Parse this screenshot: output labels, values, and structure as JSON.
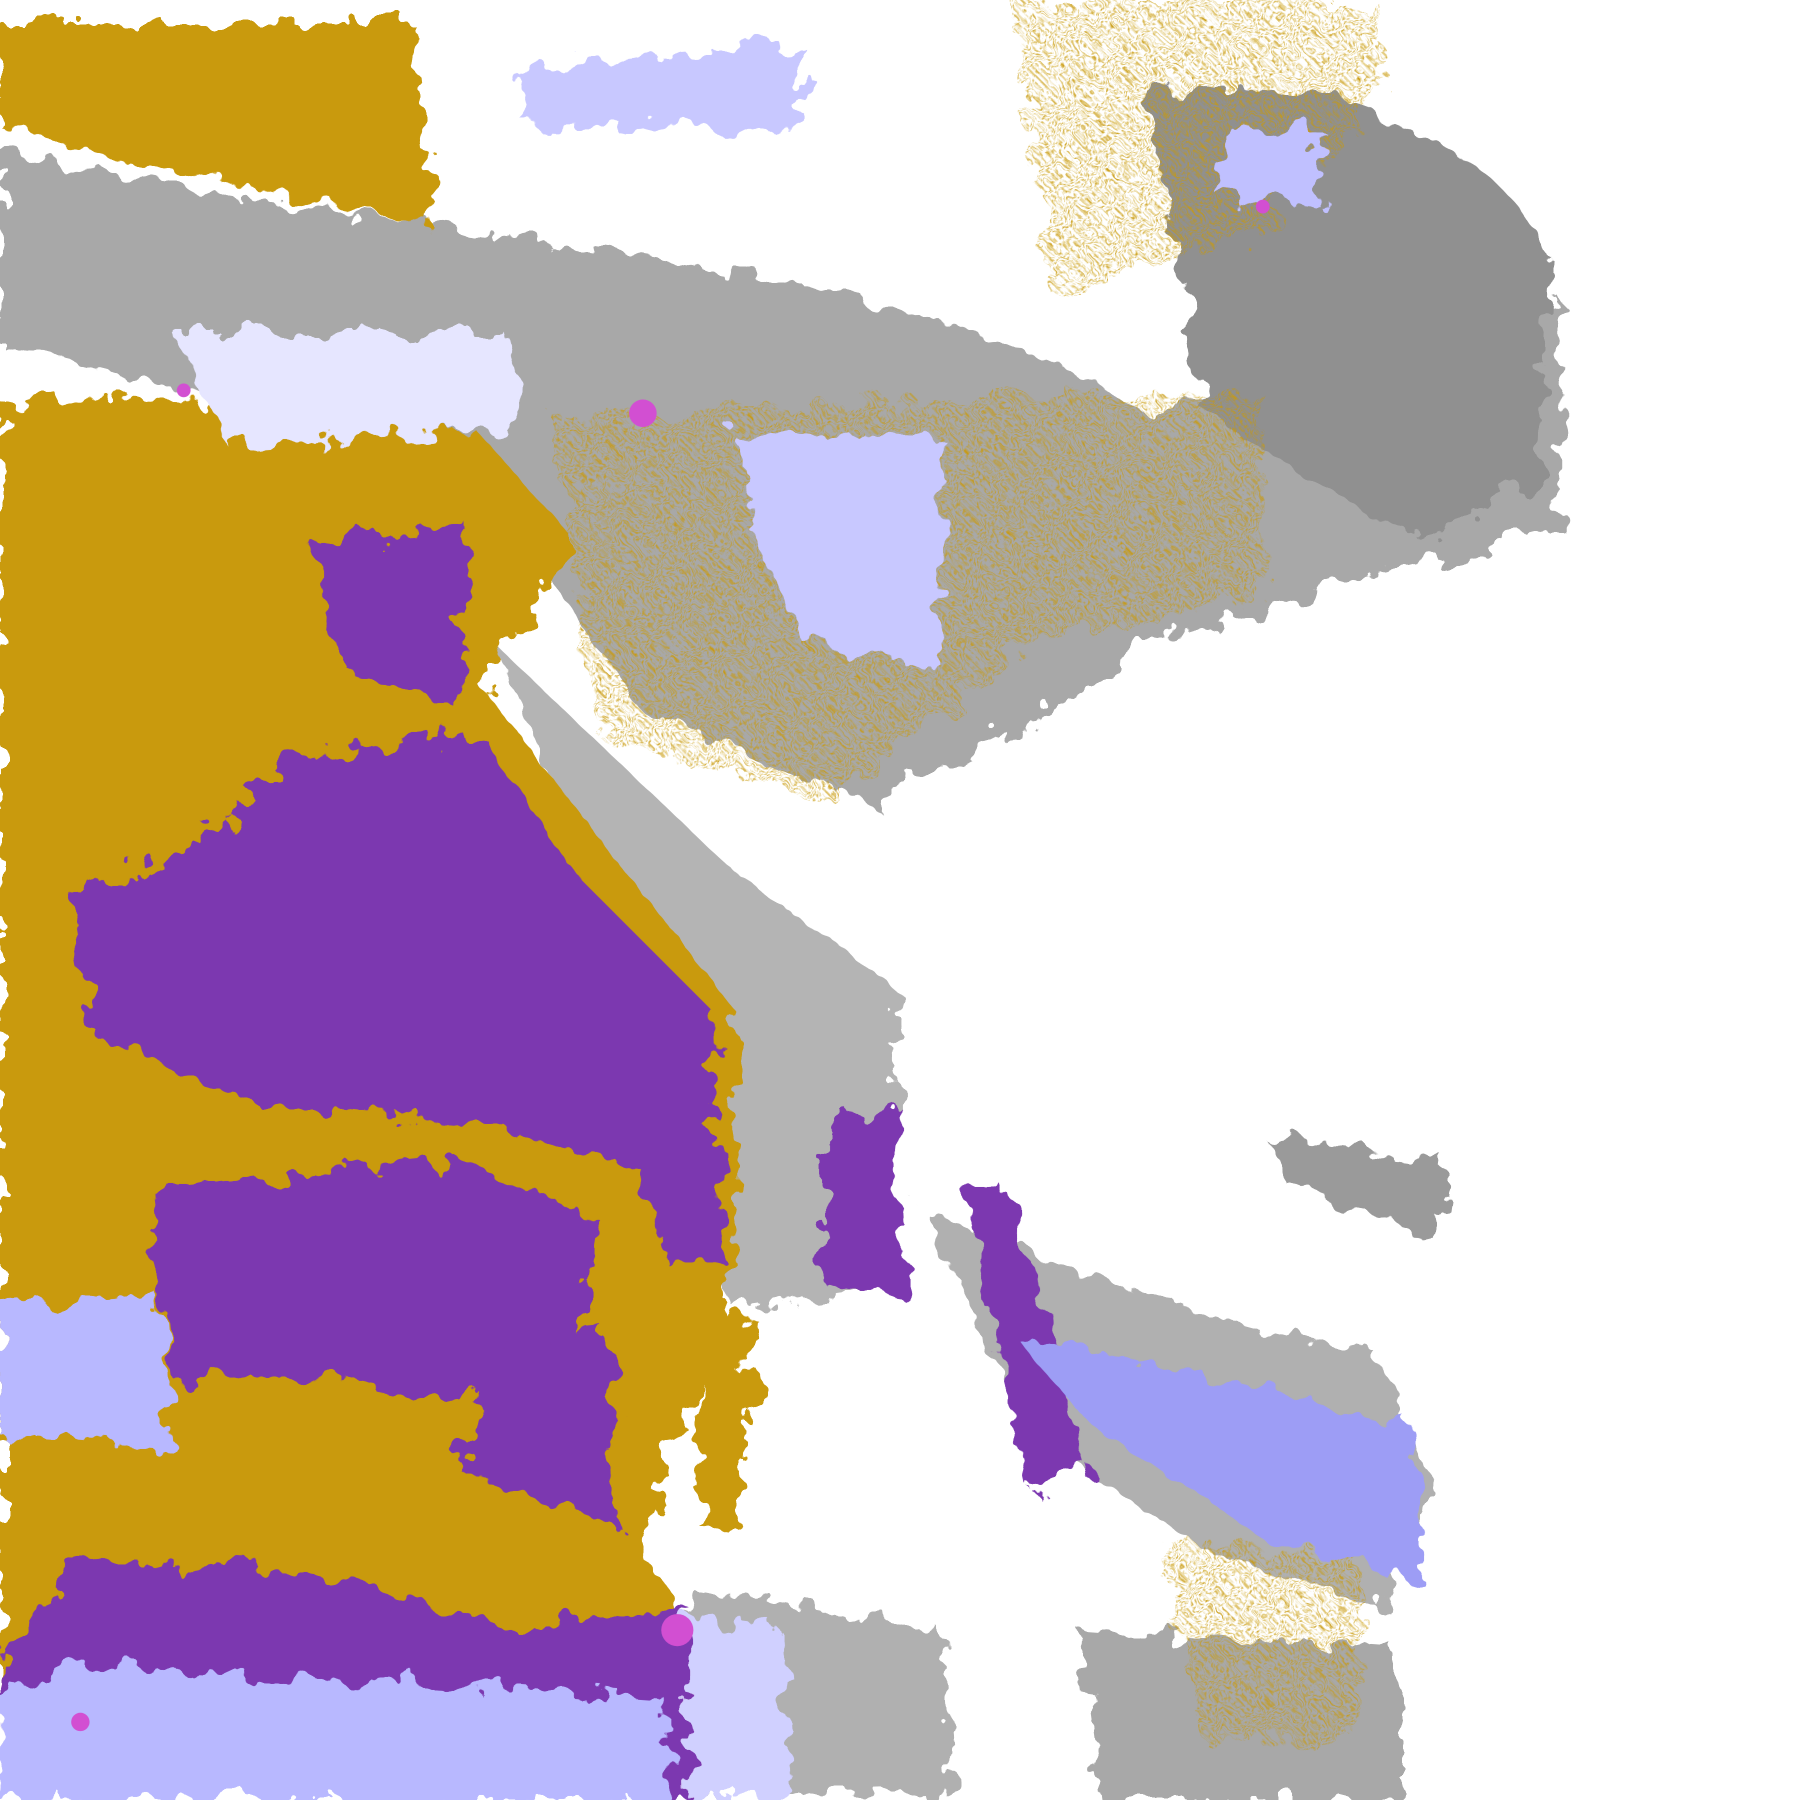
{
  "map": {
    "type": "cloud-classification-raster",
    "background": "#ffffff",
    "colors": {
      "gold": "#c99a0c",
      "purple": "#7c38b0",
      "lavender": "#b8b8ff",
      "pale_lavender": "#e6e6ff",
      "periwinkle": "#9d9df5",
      "light_gray": "#b4b4b4",
      "gray": "#8c8c8c",
      "magenta": "#d24fd2"
    }
  }
}
